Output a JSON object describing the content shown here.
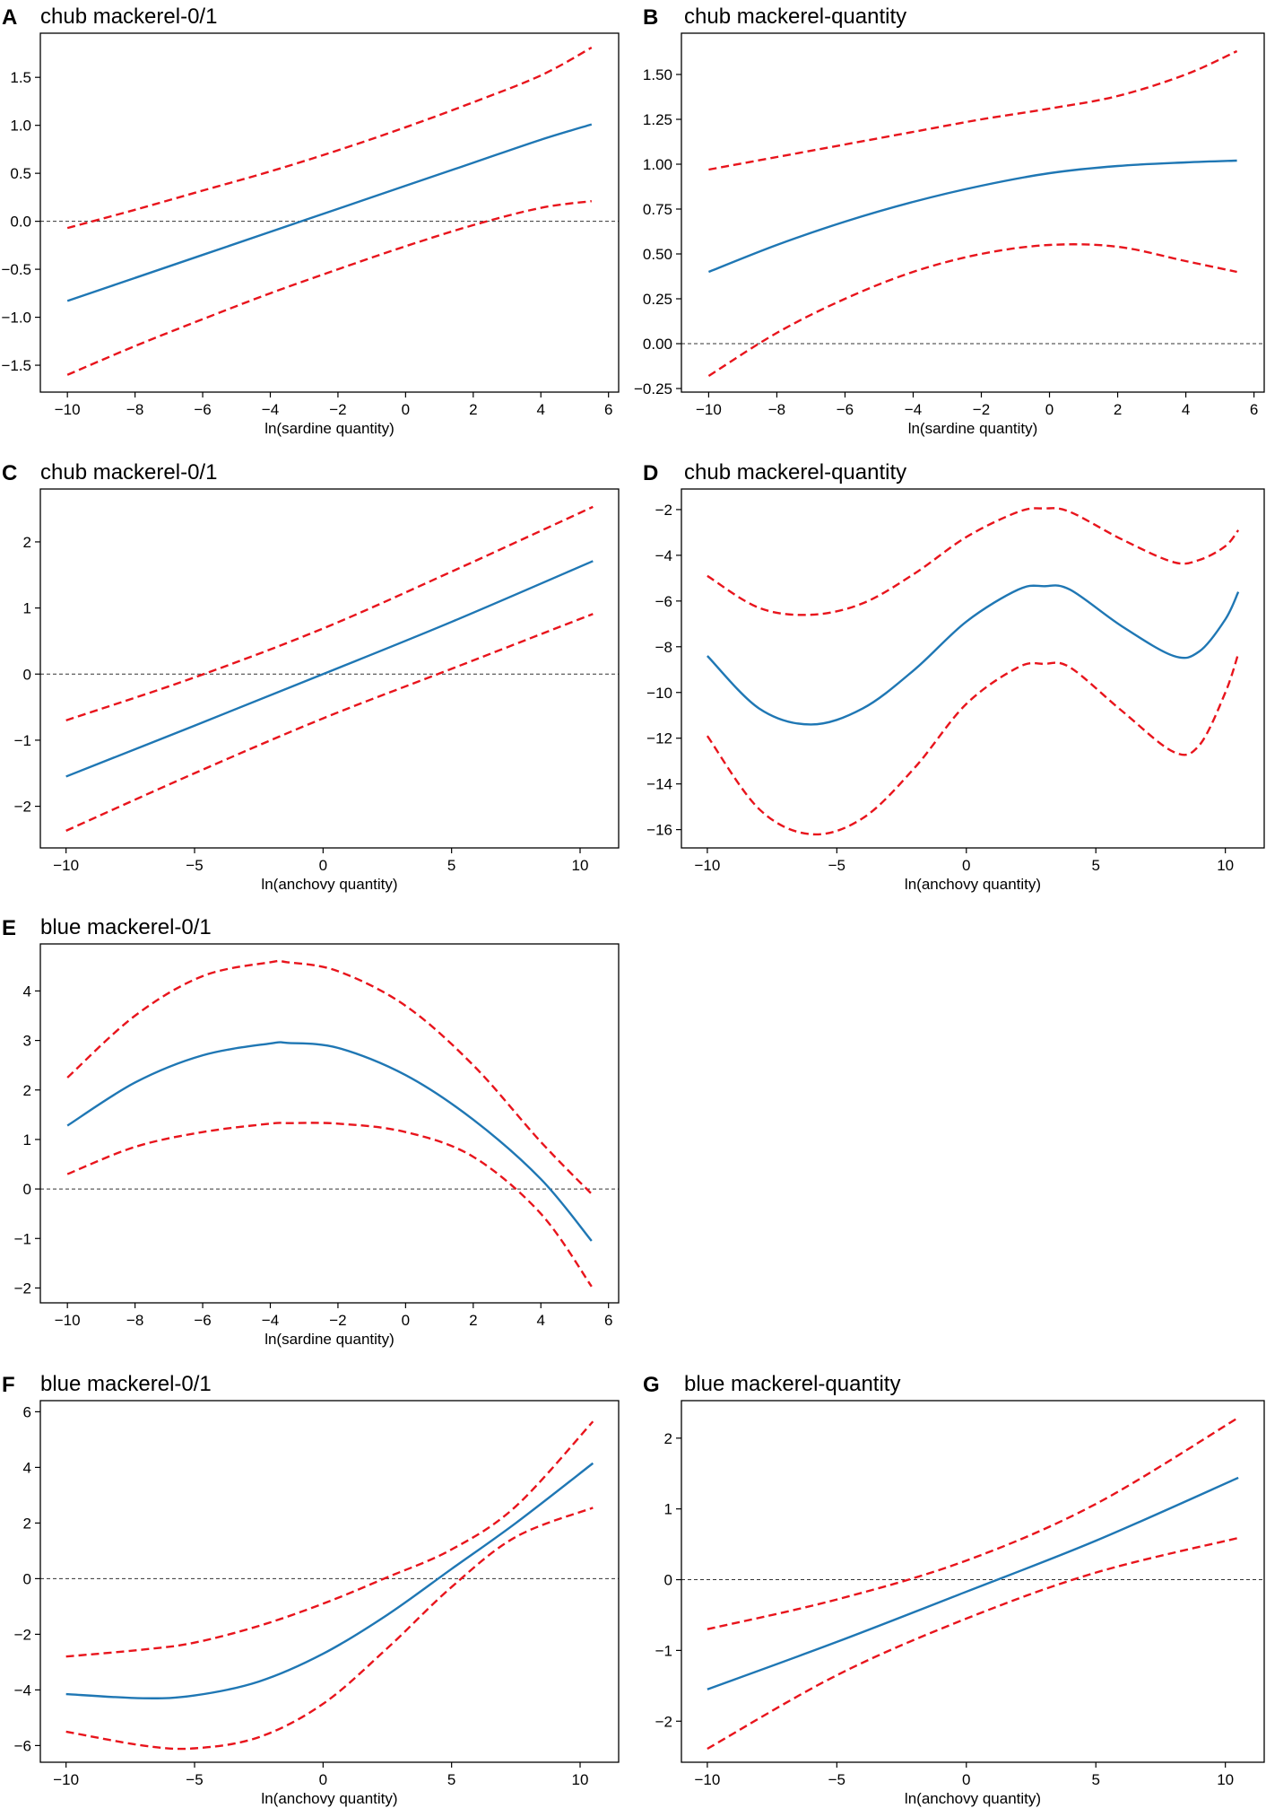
{
  "colors": {
    "fit": "#1f77b4",
    "ci": "#e8141c",
    "zero_line": "#333333",
    "frame": "#000000"
  },
  "chart_data": [
    {
      "id": "A",
      "letter": "A",
      "title": "chub mackerel-0/1",
      "type": "line",
      "xlabel": "ln(sardine quantity)",
      "ylabel": "",
      "xlim": [
        -10.8,
        6.3
      ],
      "ylim": [
        -1.78,
        1.96
      ],
      "xticks": [
        -10,
        -8,
        -6,
        -4,
        -2,
        0,
        2,
        4,
        6
      ],
      "xtick_labels": [
        "−10",
        "−8",
        "−6",
        "−4",
        "−2",
        "0",
        "2",
        "4",
        "6"
      ],
      "yticks": [
        -1.5,
        -1.0,
        -0.5,
        0.0,
        0.5,
        1.0,
        1.5
      ],
      "ytick_labels": [
        "−1.5",
        "−1.0",
        "−0.5",
        "0.0",
        "0.5",
        "1.0",
        "1.5"
      ],
      "zero_line": true,
      "x": [
        -10,
        -8,
        -6,
        -4,
        -2,
        0,
        2,
        4,
        5.5
      ],
      "series": [
        {
          "name": "estimate",
          "style": "solid",
          "values": [
            -0.83,
            -0.59,
            -0.35,
            -0.11,
            0.13,
            0.37,
            0.61,
            0.85,
            1.01
          ]
        },
        {
          "name": "upper 95% CI",
          "style": "dashed",
          "values": [
            -0.07,
            0.12,
            0.32,
            0.52,
            0.74,
            0.98,
            1.24,
            1.52,
            1.81
          ]
        },
        {
          "name": "lower 95% CI",
          "style": "dashed",
          "values": [
            -1.6,
            -1.3,
            -1.02,
            -0.75,
            -0.5,
            -0.26,
            -0.04,
            0.14,
            0.21
          ]
        }
      ]
    },
    {
      "id": "B",
      "letter": "B",
      "title": "chub mackerel-quantity",
      "type": "line",
      "xlabel": "ln(sardine quantity)",
      "ylabel": "",
      "xlim": [
        -10.8,
        6.3
      ],
      "ylim": [
        -0.27,
        1.73
      ],
      "xticks": [
        -10,
        -8,
        -6,
        -4,
        -2,
        0,
        2,
        4,
        6
      ],
      "xtick_labels": [
        "−10",
        "−8",
        "−6",
        "−4",
        "−2",
        "0",
        "2",
        "4",
        "6"
      ],
      "yticks": [
        -0.25,
        0.0,
        0.25,
        0.5,
        0.75,
        1.0,
        1.25,
        1.5
      ],
      "ytick_labels": [
        "−0.25",
        "0.00",
        "0.25",
        "0.50",
        "0.75",
        "1.00",
        "1.25",
        "1.50"
      ],
      "zero_line": true,
      "x": [
        -10,
        -8,
        -6,
        -4,
        -2,
        0,
        2,
        4,
        5.5
      ],
      "series": [
        {
          "name": "estimate",
          "style": "solid",
          "values": [
            0.4,
            0.55,
            0.68,
            0.79,
            0.88,
            0.95,
            0.99,
            1.01,
            1.02
          ]
        },
        {
          "name": "upper 95% CI",
          "style": "dashed",
          "values": [
            0.97,
            1.04,
            1.11,
            1.18,
            1.25,
            1.31,
            1.38,
            1.5,
            1.63
          ]
        },
        {
          "name": "lower 95% CI",
          "style": "dashed",
          "values": [
            -0.18,
            0.06,
            0.25,
            0.4,
            0.5,
            0.55,
            0.54,
            0.46,
            0.4
          ]
        }
      ]
    },
    {
      "id": "C",
      "letter": "C",
      "title": "chub mackerel-0/1",
      "type": "line",
      "xlabel": "ln(anchovy quantity)",
      "ylabel": "",
      "xlim": [
        -11.0,
        11.5
      ],
      "ylim": [
        -2.63,
        2.8
      ],
      "xticks": [
        -10,
        -5,
        0,
        5,
        10
      ],
      "xtick_labels": [
        "−10",
        "−5",
        "0",
        "5",
        "10"
      ],
      "yticks": [
        -2,
        -1,
        0,
        1,
        2
      ],
      "ytick_labels": [
        "−2",
        "−1",
        "0",
        "1",
        "2"
      ],
      "zero_line": true,
      "x": [
        -10,
        -5,
        0,
        5,
        10.5
      ],
      "series": [
        {
          "name": "estimate",
          "style": "solid",
          "values": [
            -1.55,
            -0.78,
            0.0,
            0.79,
            1.71
          ]
        },
        {
          "name": "upper 95% CI",
          "style": "dashed",
          "values": [
            -0.7,
            -0.05,
            0.69,
            1.55,
            2.53
          ]
        },
        {
          "name": "lower 95% CI",
          "style": "dashed",
          "values": [
            -2.37,
            -1.5,
            -0.67,
            0.08,
            0.91
          ]
        }
      ]
    },
    {
      "id": "D",
      "letter": "D",
      "title": "chub mackerel-quantity",
      "type": "line",
      "xlabel": "ln(anchovy quantity)",
      "ylabel": "",
      "xlim": [
        -11.0,
        11.5
      ],
      "ylim": [
        -16.8,
        -1.1
      ],
      "xticks": [
        -10,
        -5,
        0,
        5,
        10
      ],
      "xtick_labels": [
        "−10",
        "−5",
        "0",
        "5",
        "10"
      ],
      "yticks": [
        -16,
        -14,
        -12,
        -10,
        -8,
        -6,
        -4,
        -2
      ],
      "ytick_labels": [
        "−16",
        "−14",
        "−12",
        "−10",
        "−8",
        "−6",
        "−4",
        "−2"
      ],
      "zero_line": false,
      "x": [
        -10,
        -8,
        -6,
        -4,
        -2,
        0,
        2,
        3,
        4,
        6,
        8,
        9,
        10,
        10.5
      ],
      "series": [
        {
          "name": "estimate",
          "style": "solid",
          "values": [
            -8.4,
            -10.7,
            -11.4,
            -10.7,
            -9.0,
            -6.9,
            -5.5,
            -5.35,
            -5.5,
            -7.1,
            -8.4,
            -8.2,
            -6.8,
            -5.6
          ]
        },
        {
          "name": "upper 95% CI",
          "style": "dashed",
          "values": [
            -4.9,
            -6.3,
            -6.6,
            -6.1,
            -4.8,
            -3.2,
            -2.1,
            -1.95,
            -2.1,
            -3.3,
            -4.3,
            -4.2,
            -3.6,
            -2.9
          ]
        },
        {
          "name": "lower 95% CI",
          "style": "dashed",
          "values": [
            -11.9,
            -15.1,
            -16.2,
            -15.5,
            -13.3,
            -10.5,
            -8.9,
            -8.75,
            -8.9,
            -10.8,
            -12.6,
            -12.3,
            -10.0,
            -8.3
          ]
        }
      ]
    },
    {
      "id": "E",
      "letter": "E",
      "title": "blue mackerel-0/1",
      "type": "line",
      "xlabel": "ln(sardine quantity)",
      "ylabel": "",
      "xlim": [
        -10.8,
        6.3
      ],
      "ylim": [
        -2.3,
        4.95
      ],
      "xticks": [
        -10,
        -8,
        -6,
        -4,
        -2,
        0,
        2,
        4,
        6
      ],
      "xtick_labels": [
        "−10",
        "−8",
        "−6",
        "−4",
        "−2",
        "0",
        "2",
        "4",
        "6"
      ],
      "yticks": [
        -2,
        -1,
        0,
        1,
        2,
        3,
        4
      ],
      "ytick_labels": [
        "−2",
        "−1",
        "0",
        "1",
        "2",
        "3",
        "4"
      ],
      "zero_line": true,
      "x": [
        -10,
        -8,
        -6,
        -4,
        -3.5,
        -2,
        0,
        2,
        4,
        5.5
      ],
      "series": [
        {
          "name": "estimate",
          "style": "solid",
          "values": [
            1.28,
            2.15,
            2.7,
            2.94,
            2.95,
            2.85,
            2.3,
            1.4,
            0.2,
            -1.05
          ]
        },
        {
          "name": "upper 95% CI",
          "style": "dashed",
          "values": [
            2.25,
            3.5,
            4.3,
            4.58,
            4.58,
            4.4,
            3.7,
            2.5,
            0.95,
            -0.1
          ]
        },
        {
          "name": "lower 95% CI",
          "style": "dashed",
          "values": [
            0.3,
            0.85,
            1.15,
            1.32,
            1.33,
            1.32,
            1.15,
            0.65,
            -0.5,
            -1.97
          ]
        }
      ]
    },
    {
      "id": "F",
      "letter": "F",
      "title": "blue mackerel-0/1",
      "type": "line",
      "xlabel": "ln(anchovy quantity)",
      "ylabel": "",
      "xlim": [
        -11.0,
        11.5
      ],
      "ylim": [
        -6.6,
        6.4
      ],
      "xticks": [
        -10,
        -5,
        0,
        5,
        10
      ],
      "xtick_labels": [
        "−10",
        "−5",
        "0",
        "5",
        "10"
      ],
      "yticks": [
        -6,
        -4,
        -2,
        0,
        2,
        4,
        6
      ],
      "ytick_labels": [
        "−6",
        "−4",
        "−2",
        "0",
        "2",
        "4",
        "6"
      ],
      "zero_line": true,
      "x": [
        -10,
        -7,
        -5,
        -2.5,
        0,
        2.5,
        5,
        7.5,
        10.5
      ],
      "series": [
        {
          "name": "estimate",
          "style": "solid",
          "values": [
            -4.15,
            -4.3,
            -4.2,
            -3.7,
            -2.7,
            -1.3,
            0.35,
            2.0,
            4.15
          ]
        },
        {
          "name": "upper 95% CI",
          "style": "dashed",
          "values": [
            -2.8,
            -2.55,
            -2.3,
            -1.7,
            -0.9,
            0.05,
            1.05,
            2.6,
            5.65
          ]
        },
        {
          "name": "lower 95% CI",
          "style": "dashed",
          "values": [
            -5.5,
            -6.0,
            -6.1,
            -5.7,
            -4.5,
            -2.5,
            -0.3,
            1.5,
            2.55
          ]
        }
      ]
    },
    {
      "id": "G",
      "letter": "G",
      "title": "blue mackerel-quantity",
      "type": "line",
      "xlabel": "ln(anchovy quantity)",
      "ylabel": "",
      "xlim": [
        -11.0,
        11.5
      ],
      "ylim": [
        -2.58,
        2.53
      ],
      "xticks": [
        -10,
        -5,
        0,
        5,
        10
      ],
      "xtick_labels": [
        "−10",
        "−5",
        "0",
        "5",
        "10"
      ],
      "yticks": [
        -2,
        -1,
        0,
        1,
        2
      ],
      "ytick_labels": [
        "−2",
        "−1",
        "0",
        "1",
        "2"
      ],
      "zero_line": true,
      "x": [
        -10,
        -5,
        0,
        5,
        10.5
      ],
      "series": [
        {
          "name": "estimate",
          "style": "solid",
          "values": [
            -1.55,
            -0.88,
            -0.17,
            0.55,
            1.44
          ]
        },
        {
          "name": "upper 95% CI",
          "style": "dashed",
          "values": [
            -0.7,
            -0.28,
            0.27,
            1.07,
            2.29
          ]
        },
        {
          "name": "lower 95% CI",
          "style": "dashed",
          "values": [
            -2.39,
            -1.35,
            -0.55,
            0.1,
            0.59
          ]
        }
      ]
    }
  ]
}
